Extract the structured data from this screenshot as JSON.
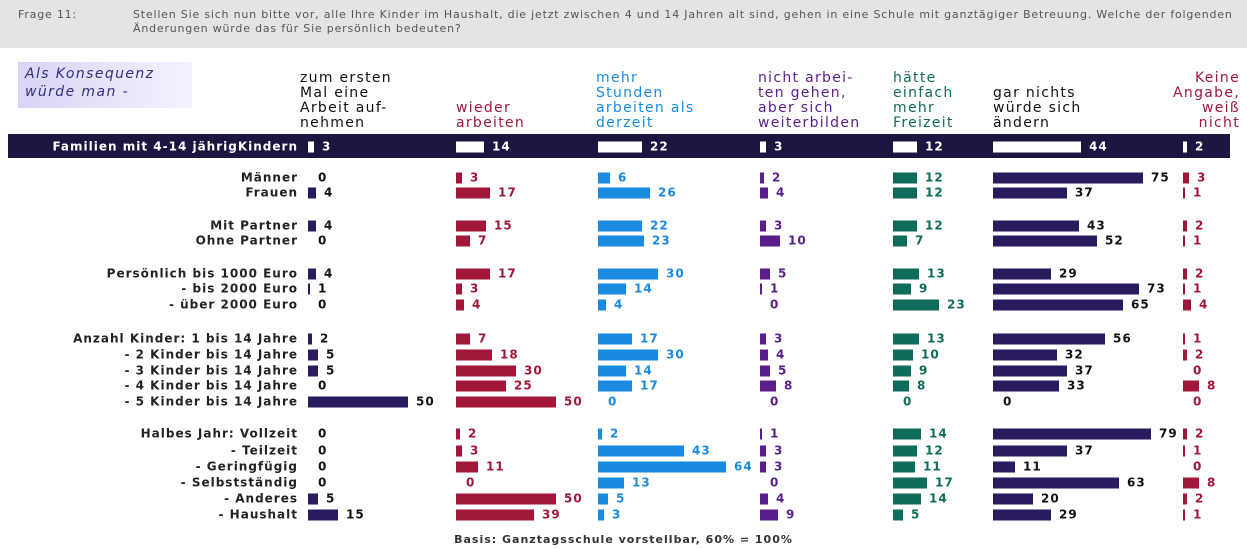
{
  "question_number": "Frage 11:",
  "question": "Stellen Sie sich nun bitte vor, alle Ihre Kinder im Haushalt, die jetzt zwischen 4 und 14 Jahren alt sind, gehen in eine Schule mit ganztägiger Betreuung. Welche der folgenden Änderungen würde das für Sie persönlich bedeuten?",
  "intro": "Als Konsequenz würde man -",
  "footnote": "Basis: Ganztagsschule vorstellbar, 60% = 100%",
  "chart_data": {
    "type": "bar",
    "categories": [
      "Familien mit 4-14 jährigKindern",
      "Männer",
      "Frauen",
      "Mit Partner",
      "Ohne Partner",
      "Persönlich bis 1000 Euro",
      "- bis 2000 Euro",
      "- über 2000 Euro",
      "Anzahl Kinder: 1 bis 14 Jahre",
      "- 2 Kinder bis 14 Jahre",
      "- 3 Kinder bis 14 Jahre",
      "- 4 Kinder bis 14 Jahre",
      "- 5 Kinder bis 14 Jahre",
      "Halbes Jahr: Vollzeit",
      "- Teilzeit",
      "- Geringfügig",
      "- Selbstständig",
      "- Anderes",
      "- Haushalt"
    ],
    "series": [
      {
        "name": "zum ersten\nMal eine\nArbeit auf-\nnehmen",
        "color": "#2a1a5e",
        "values": [
          3,
          0,
          4,
          4,
          0,
          4,
          1,
          0,
          2,
          5,
          5,
          0,
          50,
          0,
          0,
          0,
          0,
          5,
          15
        ]
      },
      {
        "name": "wieder\narbeiten",
        "color": "#a0173a",
        "values": [
          14,
          3,
          17,
          15,
          7,
          17,
          3,
          4,
          7,
          18,
          30,
          25,
          50,
          2,
          3,
          11,
          0,
          50,
          39
        ]
      },
      {
        "name": "mehr\nStunden\narbeiten als\nderzeit",
        "color": "#1a8ae0",
        "values": [
          22,
          6,
          26,
          22,
          23,
          30,
          14,
          4,
          17,
          30,
          14,
          17,
          0,
          2,
          43,
          64,
          13,
          5,
          3
        ]
      },
      {
        "name": "nicht arbei-\nten gehen,\naber sich\nweiterbilden",
        "color": "#5a1e8a",
        "values": [
          3,
          2,
          4,
          3,
          10,
          5,
          1,
          0,
          3,
          4,
          5,
          8,
          0,
          1,
          3,
          3,
          0,
          4,
          9
        ]
      },
      {
        "name": "hätte\neinfach\nmehr\nFreizeit",
        "color": "#0f6b5a",
        "values": [
          12,
          12,
          12,
          12,
          7,
          13,
          9,
          23,
          13,
          10,
          9,
          8,
          0,
          14,
          12,
          11,
          17,
          14,
          5
        ]
      },
      {
        "name": "gar nichts\nwürde sich\nändern",
        "color": "#2a1a5e",
        "values": [
          44,
          75,
          37,
          43,
          52,
          29,
          73,
          65,
          56,
          32,
          37,
          33,
          0,
          79,
          37,
          11,
          63,
          20,
          29
        ]
      },
      {
        "name": "Keine\nAngabe,\nweiß\nnicht",
        "color": "#a0173a",
        "values": [
          2,
          3,
          1,
          2,
          1,
          2,
          1,
          4,
          1,
          2,
          0,
          8,
          0,
          2,
          1,
          0,
          8,
          2,
          1
        ]
      }
    ]
  }
}
